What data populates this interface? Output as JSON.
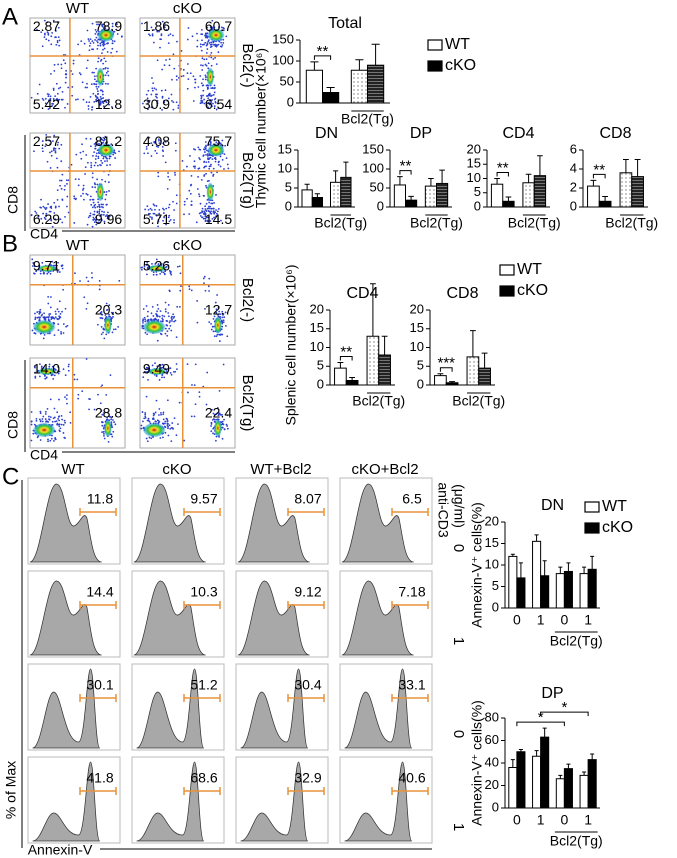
{
  "panel_labels": [
    "A",
    "B",
    "C"
  ],
  "flow_a": {
    "columns": [
      "WT",
      "cKO"
    ],
    "rows": [
      "Bcl2(-)",
      "Bcl2(Tg)"
    ],
    "quadrants": [
      [
        [
          "2.87",
          "78.9",
          "5.42",
          "12.8"
        ],
        [
          "1.86",
          "60.7",
          "30.9",
          "6.54"
        ]
      ],
      [
        [
          "2.57",
          "81.2",
          "6.29",
          "9.96"
        ],
        [
          "4.08",
          "75.7",
          "5.71",
          "14.5"
        ]
      ]
    ],
    "x_axis": "CD4",
    "y_axis": "CD8"
  },
  "flow_b": {
    "columns": [
      "WT",
      "cKO"
    ],
    "rows": [
      "Bcl2(-)",
      "Bcl2(Tg)"
    ],
    "quadrants": [
      [
        [
          "9.71",
          "20.3"
        ],
        [
          "5.26",
          "12.7"
        ]
      ],
      [
        [
          "14.0",
          "28.8"
        ],
        [
          "9.49",
          "22.4"
        ]
      ]
    ],
    "x_axis": "CD4",
    "y_axis": "CD8"
  },
  "histograms_c": {
    "columns": [
      "WT",
      "cKO",
      "WT+Bcl2",
      "cKO+Bcl2"
    ],
    "rows": [
      "0",
      "1",
      "0",
      "1"
    ],
    "row_title": "anti-CD3",
    "row_unit": "(μg/ml)",
    "gates": [
      [
        "11.8",
        "9.57",
        "8.07",
        "6.5"
      ],
      [
        "14.4",
        "10.3",
        "9.12",
        "7.18"
      ],
      [
        "30.1",
        "51.2",
        "30.4",
        "33.1"
      ],
      [
        "41.8",
        "68.6",
        "32.9",
        "40.6"
      ]
    ],
    "y_axis": "% of Max",
    "x_axis": "Annexin-V"
  },
  "chart_data": [
    {
      "type": "bar",
      "title": "Total",
      "ylabel": "Thymic cell number(×10⁶)",
      "categories": [
        null,
        "Bcl2(Tg)"
      ],
      "hatch": [
        false,
        true
      ],
      "series": [
        {
          "name": "WT",
          "color": "#ffffff",
          "values": [
            78,
            78
          ],
          "errors": [
            20,
            25
          ]
        },
        {
          "name": "cKO",
          "color": "#000000",
          "values": [
            25,
            90
          ],
          "errors": [
            12,
            50
          ]
        }
      ],
      "ylim": [
        0,
        150
      ],
      "yticks": [
        0,
        50,
        100,
        150
      ],
      "annotations": [
        "**"
      ],
      "legend": "right"
    },
    {
      "type": "bar",
      "title": "DN",
      "categories": [
        null,
        "Bcl2(Tg)"
      ],
      "hatch": [
        false,
        true
      ],
      "series": [
        {
          "color": "#ffffff",
          "values": [
            4.5,
            6.5
          ],
          "errors": [
            1.5,
            3
          ]
        },
        {
          "color": "#000000",
          "values": [
            2.5,
            7.8
          ],
          "errors": [
            1,
            4
          ]
        }
      ],
      "ylim": [
        0,
        15
      ],
      "yticks": [
        0,
        5,
        10,
        15
      ],
      "annotations": []
    },
    {
      "type": "bar",
      "title": "DP",
      "categories": [
        null,
        "Bcl2(Tg)"
      ],
      "hatch": [
        false,
        true
      ],
      "series": [
        {
          "color": "#ffffff",
          "values": [
            58,
            55
          ],
          "errors": [
            22,
            20
          ]
        },
        {
          "color": "#000000",
          "values": [
            18,
            62
          ],
          "errors": [
            10,
            35
          ]
        }
      ],
      "ylim": [
        0,
        150
      ],
      "yticks": [
        0,
        50,
        100,
        150
      ],
      "annotations": [
        "**"
      ]
    },
    {
      "type": "bar",
      "title": "CD4",
      "categories": [
        null,
        "Bcl2(Tg)"
      ],
      "hatch": [
        false,
        true
      ],
      "series": [
        {
          "color": "#ffffff",
          "values": [
            8,
            8.5
          ],
          "errors": [
            2,
            3
          ]
        },
        {
          "color": "#000000",
          "values": [
            2,
            11
          ],
          "errors": [
            1.5,
            7
          ]
        }
      ],
      "ylim": [
        0,
        20
      ],
      "yticks": [
        0,
        5,
        10,
        15,
        20
      ],
      "annotations": [
        "**"
      ]
    },
    {
      "type": "bar",
      "title": "CD8",
      "categories": [
        null,
        "Bcl2(Tg)"
      ],
      "hatch": [
        false,
        true
      ],
      "series": [
        {
          "color": "#ffffff",
          "values": [
            2.2,
            3.6
          ],
          "errors": [
            0.6,
            1.4
          ]
        },
        {
          "color": "#000000",
          "values": [
            0.6,
            3.2
          ],
          "errors": [
            0.5,
            1.8
          ]
        }
      ],
      "ylim": [
        0,
        6
      ],
      "yticks": [
        0,
        2,
        4,
        6
      ],
      "annotations": [
        "**"
      ]
    },
    {
      "type": "bar",
      "title": "CD4",
      "ylabel": "Splenic cell number(×10⁶)",
      "categories": [
        null,
        "Bcl2(Tg)"
      ],
      "hatch": [
        false,
        true
      ],
      "series": [
        {
          "color": "#ffffff",
          "values": [
            4.5,
            13
          ],
          "errors": [
            1.5,
            14
          ]
        },
        {
          "color": "#000000",
          "values": [
            1.2,
            8
          ],
          "errors": [
            0.8,
            5
          ]
        }
      ],
      "ylim": [
        0,
        20
      ],
      "yticks": [
        0,
        5,
        10,
        15,
        20
      ],
      "annotations": [
        "**"
      ]
    },
    {
      "type": "bar",
      "title": "CD8",
      "categories": [
        null,
        "Bcl2(Tg)"
      ],
      "hatch": [
        false,
        true
      ],
      "series": [
        {
          "name": "WT",
          "color": "#ffffff",
          "values": [
            2.5,
            7.5
          ],
          "errors": [
            0.5,
            7
          ]
        },
        {
          "name": "cKO",
          "color": "#000000",
          "values": [
            0.6,
            4.5
          ],
          "errors": [
            0.3,
            4
          ]
        }
      ],
      "ylim": [
        0,
        20
      ],
      "yticks": [
        0,
        5,
        10,
        15,
        20
      ],
      "annotations": [
        "***"
      ],
      "legend": "right"
    },
    {
      "type": "bar",
      "title": "DN",
      "ylabel": "Annexin-V⁺ cells(%)",
      "categories": [
        "0",
        "1",
        "0",
        "1"
      ],
      "group_label": "Bcl2(Tg)",
      "series": [
        {
          "name": "WT",
          "color": "#ffffff",
          "values": [
            12,
            15.5,
            8,
            8
          ],
          "errors": [
            0.5,
            1.5,
            1.5,
            1.5
          ]
        },
        {
          "name": "cKO",
          "color": "#000000",
          "values": [
            7,
            7.5,
            8.5,
            9
          ],
          "errors": [
            3.5,
            3.5,
            2,
            3
          ]
        }
      ],
      "ylim": [
        0,
        20
      ],
      "yticks": [
        0,
        5,
        10,
        15,
        20
      ],
      "annotations": [],
      "legend": "right"
    },
    {
      "type": "bar",
      "title": "DP",
      "ylabel": "Annexin-V⁺ cells(%)",
      "categories": [
        "0",
        "1",
        "0",
        "1"
      ],
      "group_label": "Bcl2(Tg)",
      "series": [
        {
          "color": "#ffffff",
          "values": [
            36,
            46,
            26,
            29
          ],
          "errors": [
            7,
            5,
            3,
            3
          ]
        },
        {
          "color": "#000000",
          "values": [
            50,
            63,
            35,
            43
          ],
          "errors": [
            2,
            8,
            4,
            5
          ]
        }
      ],
      "ylim": [
        0,
        80
      ],
      "yticks": [
        0,
        20,
        40,
        60,
        80
      ],
      "annotations": [
        "*",
        "*"
      ]
    }
  ]
}
